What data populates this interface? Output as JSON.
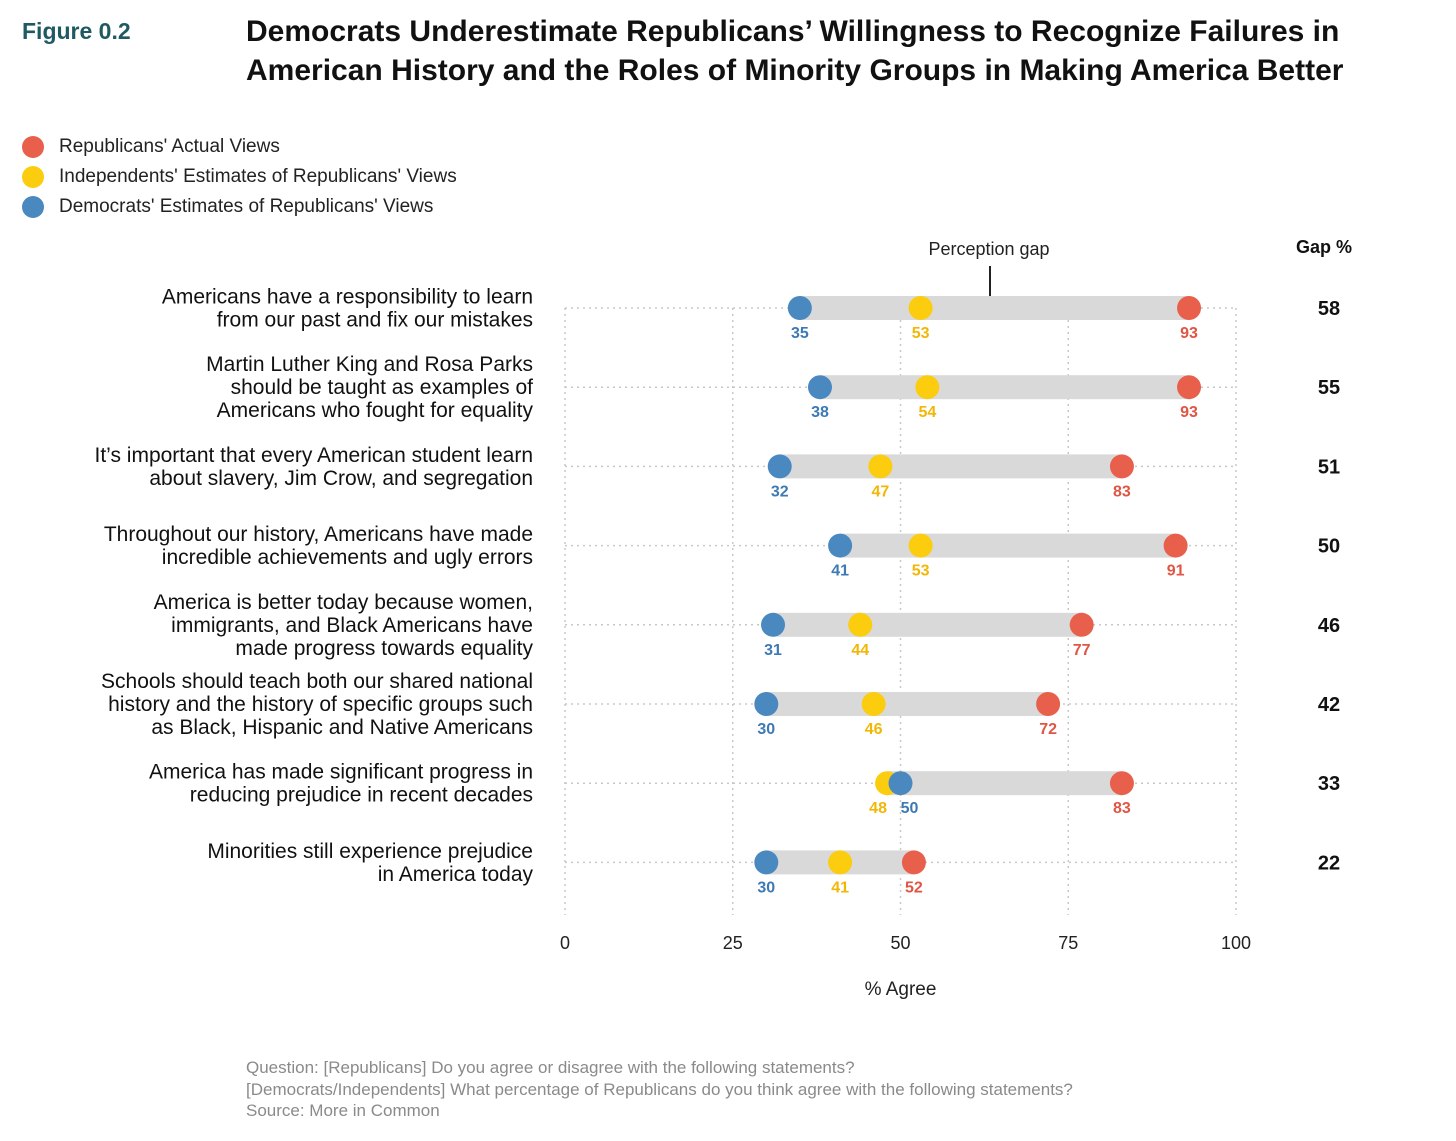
{
  "figure_label": "Figure 0.2",
  "title_line1": "Democrats Underestimate Republicans’ Willingness to Recognize Failures in",
  "title_line2": "American History and the Roles of Minority Groups in Making America Better",
  "legend": [
    {
      "label": "Republicans' Actual Views",
      "color": "#e8604c"
    },
    {
      "label": "Independents' Estimates of Republicans' Views",
      "color": "#fccc0f"
    },
    {
      "label": "Democrats' Estimates of Republicans' Views",
      "color": "#4a88c0"
    }
  ],
  "chart_data": {
    "type": "dot",
    "xlabel": "% Agree",
    "xlim": [
      0,
      100
    ],
    "xticks": [
      0,
      25,
      50,
      75,
      100
    ],
    "grid": true,
    "legend_position": "top-left",
    "gap_header": "Gap %",
    "annotation": "Perception gap",
    "colors": {
      "rep": "#e8604c",
      "ind": "#fccc0f",
      "dem": "#4a88c0",
      "bar": "#d9d9d9"
    },
    "rows": [
      {
        "label": [
          "Americans have a responsibility to learn",
          "from our past and fix our mistakes"
        ],
        "dem": 35,
        "ind": 53,
        "rep": 93,
        "gap": 58
      },
      {
        "label": [
          "Martin Luther King and Rosa Parks",
          "should be taught as examples of",
          "Americans who fought for equality"
        ],
        "dem": 38,
        "ind": 54,
        "rep": 93,
        "gap": 55
      },
      {
        "label": [
          "It’s important that every American student learn",
          "about slavery, Jim Crow, and segregation"
        ],
        "dem": 32,
        "ind": 47,
        "rep": 83,
        "gap": 51
      },
      {
        "label": [
          "Throughout our history, Americans have made",
          "incredible achievements and ugly errors"
        ],
        "dem": 41,
        "ind": 53,
        "rep": 91,
        "gap": 50
      },
      {
        "label": [
          "America is better today because women,",
          "immigrants, and Black Americans have",
          "made progress towards equality"
        ],
        "dem": 31,
        "ind": 44,
        "rep": 77,
        "gap": 46
      },
      {
        "label": [
          "Schools should teach both our shared national",
          "history and the history of specific groups such",
          "as Black, Hispanic and Native Americans"
        ],
        "dem": 30,
        "ind": 46,
        "rep": 72,
        "gap": 42
      },
      {
        "label": [
          "America has made significant progress in",
          "reducing prejudice in recent decades"
        ],
        "dem": 50,
        "ind": 48,
        "rep": 83,
        "gap": 33
      },
      {
        "label": [
          "Minorities still experience prejudice",
          "in America today"
        ],
        "dem": 30,
        "ind": 41,
        "rep": 52,
        "gap": 22
      }
    ]
  },
  "footer": {
    "line1": "Question: [Republicans] Do you agree or disagree with the following statements?",
    "line2": "[Democrats/Independents] What percentage of Republicans do you think agree with the following statements?",
    "line3": "Source: More in Common"
  }
}
